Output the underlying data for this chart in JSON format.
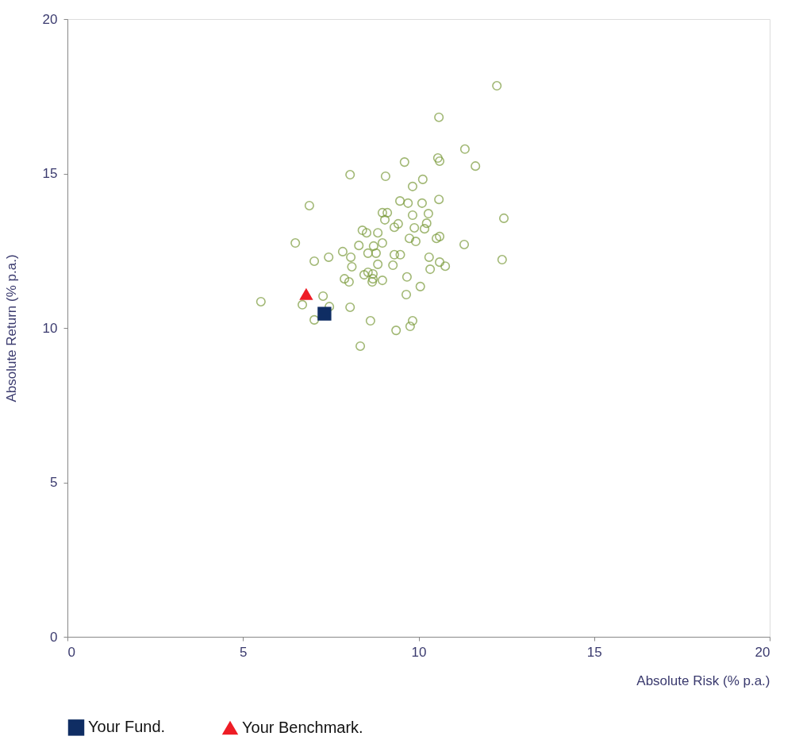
{
  "chart_data": {
    "type": "scatter",
    "xlabel": "Absolute Risk (% p.a.)",
    "ylabel": "Absolute Return (% p.a.)",
    "xlim": [
      0,
      20
    ],
    "ylim": [
      0,
      20
    ],
    "xticks": [
      0,
      5,
      10,
      15,
      20
    ],
    "yticks": [
      0,
      5,
      10,
      15,
      20
    ],
    "grid": false,
    "legend": "bottom",
    "series": [
      {
        "color": "#7a9a3a",
        "marker": "circle",
        "x": [
          12.23,
          10.58,
          11.32,
          10.55,
          10.6,
          11.62,
          9.6,
          8.05,
          9.06,
          10.12,
          9.83,
          6.89,
          9.47,
          9.7,
          10.1,
          10.58,
          12.43,
          10.28,
          8.97,
          9.11,
          9.83,
          8.4,
          8.52,
          9.31,
          9.04,
          9.42,
          9.88,
          10.23,
          10.17,
          8.84,
          8.97,
          9.74,
          9.92,
          10.51,
          10.6,
          6.49,
          8.3,
          8.72,
          11.3,
          7.84,
          8.07,
          7.44,
          7.03,
          8.56,
          8.79,
          9.31,
          9.48,
          10.3,
          10.6,
          10.76,
          12.38,
          8.1,
          8.84,
          9.27,
          8.45,
          8.56,
          8.7,
          8.7,
          10.33,
          7.89,
          8.02,
          8.68,
          8.97,
          9.67,
          10.05,
          9.65,
          5.51,
          6.69,
          7.28,
          7.46,
          8.05,
          7.03,
          8.63,
          9.83,
          9.76,
          9.36,
          8.34
        ],
        "values": [
          17.84,
          16.82,
          15.79,
          15.5,
          15.4,
          15.24,
          15.37,
          14.96,
          14.91,
          14.81,
          14.58,
          13.96,
          14.11,
          14.04,
          14.04,
          14.16,
          13.55,
          13.7,
          13.73,
          13.73,
          13.65,
          13.16,
          13.08,
          13.26,
          13.5,
          13.37,
          13.24,
          13.39,
          13.21,
          13.08,
          12.75,
          12.9,
          12.8,
          12.9,
          12.96,
          12.75,
          12.67,
          12.65,
          12.7,
          12.47,
          12.29,
          12.29,
          12.16,
          12.42,
          12.42,
          12.37,
          12.37,
          12.29,
          12.13,
          12.0,
          12.21,
          11.98,
          12.06,
          12.03,
          11.72,
          11.8,
          11.59,
          11.75,
          11.9,
          11.59,
          11.49,
          11.49,
          11.54,
          11.65,
          11.34,
          11.08,
          10.85,
          10.75,
          11.03,
          10.69,
          10.67,
          10.26,
          10.23,
          10.23,
          10.05,
          9.92,
          9.41
        ]
      },
      {
        "name": "Your Fund.",
        "color": "#0f2d63",
        "marker": "square",
        "x": [
          7.32
        ],
        "values": [
          10.46
        ]
      },
      {
        "name": "Your Benchmark.",
        "color": "#ee1c25",
        "marker": "triangle",
        "x": [
          6.8
        ],
        "values": [
          11.1
        ]
      }
    ]
  }
}
